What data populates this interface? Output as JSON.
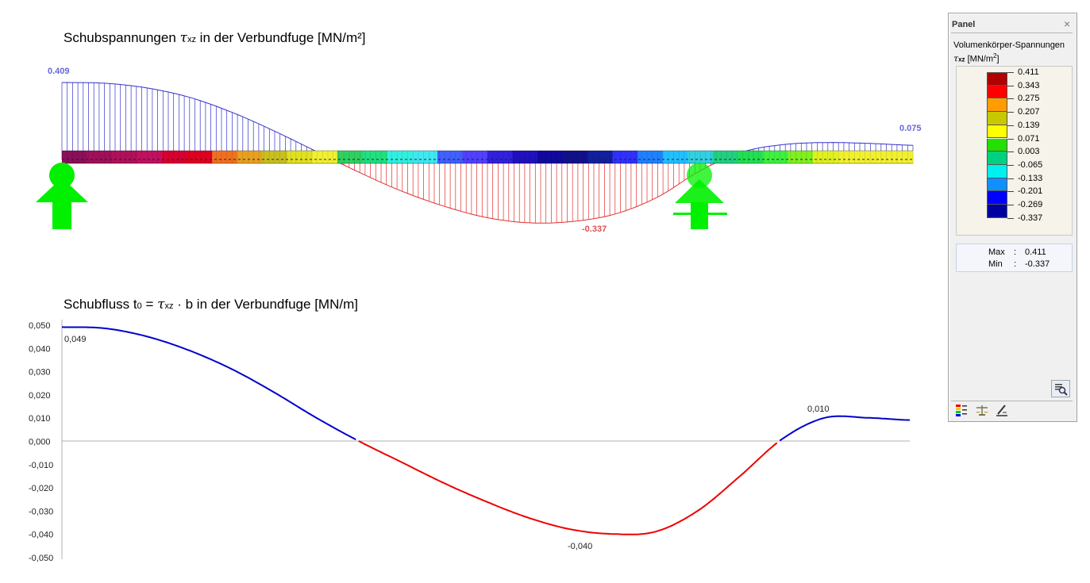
{
  "chart1": {
    "title_pre": "Schubspannungen ",
    "title_sym": "τ",
    "title_sub": "xz",
    "title_post": " in der Verbundfuge [MN/m²]",
    "label_max": "0.409",
    "label_end": "0.075",
    "label_min": "-0.337"
  },
  "chart2": {
    "title_pre": "Schubfluss t",
    "title_sub0": "0",
    "title_mid": " = ",
    "title_sym": "τ",
    "title_sub": "xz",
    "title_post": " · b in der Verbundfuge [MN/m]",
    "ticks": [
      "0,050",
      "0,040",
      "0,030",
      "0,020",
      "0,010",
      "0,000",
      "-0,010",
      "-0,020",
      "-0,030",
      "-0,040",
      "-0,050"
    ],
    "label_start": "0,049",
    "label_peak": "0,010",
    "label_min": "-0,040"
  },
  "chart_data": [
    {
      "type": "area",
      "title": "Schubspannungen τxz in der Verbundfuge [MN/m²]",
      "x": [
        0.0,
        0.05,
        0.1,
        0.15,
        0.2,
        0.25,
        0.3,
        0.35,
        0.4,
        0.45,
        0.5,
        0.55,
        0.6,
        0.65,
        0.7,
        0.75,
        0.8,
        0.85,
        0.9,
        0.95,
        1.0
      ],
      "values": [
        0.409,
        0.405,
        0.38,
        0.33,
        0.25,
        0.15,
        0.04,
        -0.07,
        -0.17,
        -0.25,
        -0.31,
        -0.337,
        -0.33,
        -0.29,
        -0.2,
        -0.06,
        0.04,
        0.08,
        0.09,
        0.085,
        0.075
      ],
      "positive_color": "#3333cc",
      "negative_color": "#e03030"
    },
    {
      "type": "line",
      "title": "Schubfluss t0 = τxz · b in der Verbundfuge [MN/m]",
      "ylim": [
        -0.05,
        0.05
      ],
      "x": [
        0.0,
        0.05,
        0.1,
        0.15,
        0.2,
        0.25,
        0.3,
        0.35,
        0.4,
        0.45,
        0.5,
        0.55,
        0.6,
        0.65,
        0.7,
        0.75,
        0.8,
        0.85,
        0.9,
        0.95,
        1.0
      ],
      "values": [
        0.049,
        0.0485,
        0.045,
        0.039,
        0.031,
        0.021,
        0.01,
        0.0,
        -0.009,
        -0.018,
        -0.026,
        -0.033,
        -0.038,
        -0.04,
        -0.039,
        -0.03,
        -0.015,
        0.001,
        0.01,
        0.01,
        0.009
      ],
      "positive_color": "#0000cc",
      "negative_color": "#ee0000",
      "grid": false
    }
  ],
  "panel": {
    "title": "Panel",
    "close": "×",
    "subtitle": "Volumenkörper-Spannungen",
    "unit_sym": "τ",
    "unit_sub": "xz",
    "unit": " [MN/m",
    "unit_sup": "2",
    "unit_end": "]",
    "legend_values": [
      "0.411",
      "0.343",
      "0.275",
      "0.207",
      "0.139",
      "0.071",
      "0.003",
      "-0.065",
      "-0.133",
      "-0.201",
      "-0.269",
      "-0.337"
    ],
    "legend_colors": [
      "#b00000",
      "#ff0000",
      "#ff9c00",
      "#c8c800",
      "#ffff00",
      "#22e000",
      "#00d080",
      "#00f0f0",
      "#1090ff",
      "#0000ff",
      "#0000a0"
    ],
    "max_label": "Max",
    "min_label": "Min",
    "colon": ":",
    "max_value": "0.411",
    "min_value": "-0.337"
  }
}
